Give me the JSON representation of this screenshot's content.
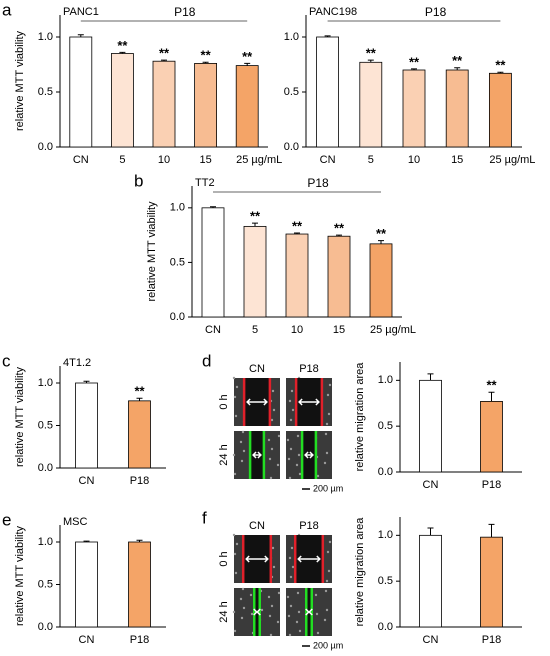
{
  "chart_data": [
    {
      "type": "bar",
      "panel": "a",
      "title": "PANC1",
      "ylabel": "relative MTT viability",
      "group_label": "P18",
      "categories": [
        "CN",
        "5",
        "10",
        "15",
        "25 µg/mL"
      ],
      "values": [
        1.0,
        0.85,
        0.78,
        0.76,
        0.74
      ],
      "errors": [
        0.02,
        0.01,
        0.01,
        0.01,
        0.02
      ],
      "markers": [
        null,
        "**",
        "**",
        "**",
        "**"
      ],
      "colors": [
        "#ffffff",
        "#fde4d4",
        "#fad0b3",
        "#f7bc92",
        "#f4a467"
      ],
      "ylim": [
        0,
        1.2
      ],
      "yticks": [
        {
          "value": 0,
          "label": "0.0"
        },
        {
          "value": 0.5,
          "label": "0.5"
        },
        {
          "value": 1,
          "label": "1.0"
        }
      ]
    },
    {
      "type": "bar",
      "title": "PANC198",
      "group_label": "P18",
      "categories": [
        "CN",
        "5",
        "10",
        "15",
        "25 µg/mL"
      ],
      "values": [
        1.0,
        0.77,
        0.7,
        0.7,
        0.67
      ],
      "errors": [
        0.01,
        0.02,
        0.01,
        0.02,
        0.01
      ],
      "markers": [
        null,
        "**",
        "**",
        "**",
        "**"
      ],
      "colors": [
        "#ffffff",
        "#fde4d4",
        "#fad0b3",
        "#f7bc92",
        "#f4a467"
      ],
      "ylim": [
        0,
        1.2
      ],
      "yticks": [
        {
          "value": 0,
          "label": "0.0"
        },
        {
          "value": 0.5,
          "label": "0.5"
        },
        {
          "value": 1,
          "label": "1.0"
        }
      ]
    },
    {
      "type": "bar",
      "panel": "b",
      "title": "TT2",
      "ylabel": "relative MTT viability",
      "group_label": "P18",
      "categories": [
        "CN",
        "5",
        "10",
        "15",
        "25 µg/mL"
      ],
      "values": [
        1.0,
        0.83,
        0.76,
        0.74,
        0.67
      ],
      "errors": [
        0.01,
        0.03,
        0.01,
        0.01,
        0.03
      ],
      "markers": [
        null,
        "**",
        "**",
        "**",
        "**"
      ],
      "colors": [
        "#ffffff",
        "#fde4d4",
        "#fad0b3",
        "#f7bc92",
        "#f4a467"
      ],
      "ylim": [
        0,
        1.2
      ],
      "yticks": [
        {
          "value": 0,
          "label": "0.0"
        },
        {
          "value": 0.5,
          "label": "0.5"
        },
        {
          "value": 1,
          "label": "1.0"
        }
      ]
    },
    {
      "type": "bar",
      "panel": "c",
      "title": "4T1.2",
      "ylabel": "relative MTT viability",
      "categories": [
        "CN",
        "P18"
      ],
      "values": [
        1.0,
        0.79
      ],
      "errors": [
        0.02,
        0.03
      ],
      "markers": [
        null,
        "**"
      ],
      "colors": [
        "#ffffff",
        "#f4a467"
      ],
      "ylim": [
        0,
        1.2
      ],
      "yticks": [
        {
          "value": 0,
          "label": "0.0"
        },
        {
          "value": 0.5,
          "label": "0.5"
        },
        {
          "value": 1,
          "label": "1.0"
        }
      ]
    },
    {
      "type": "bar",
      "ylabel": "relative migration area",
      "categories": [
        "CN",
        "P18"
      ],
      "values": [
        1.0,
        0.77
      ],
      "errors": [
        0.07,
        0.1
      ],
      "markers": [
        null,
        "**"
      ],
      "colors": [
        "#ffffff",
        "#f4a467"
      ],
      "ylim": [
        0,
        1.2
      ],
      "yticks": [
        {
          "value": 0,
          "label": "0.0"
        },
        {
          "value": 0.5,
          "label": "0.5"
        },
        {
          "value": 1,
          "label": "1.0"
        }
      ]
    },
    {
      "type": "bar",
      "panel": "e",
      "title": "MSC",
      "ylabel": "relative MTT viability",
      "categories": [
        "CN",
        "P18"
      ],
      "values": [
        1.0,
        1.0
      ],
      "errors": [
        0.01,
        0.02
      ],
      "colors": [
        "#ffffff",
        "#f4a467"
      ],
      "ylim": [
        0,
        1.2
      ],
      "yticks": [
        {
          "value": 0,
          "label": "0.0"
        },
        {
          "value": 0.5,
          "label": "0.5"
        },
        {
          "value": 1,
          "label": "1.0"
        }
      ]
    },
    {
      "type": "bar",
      "ylabel": "relative migration area",
      "categories": [
        "CN",
        "P18"
      ],
      "values": [
        1.0,
        0.98
      ],
      "errors": [
        0.08,
        0.14
      ],
      "colors": [
        "#ffffff",
        "#f4a467"
      ],
      "ylim": [
        0,
        1.2
      ],
      "yticks": [
        {
          "value": 0,
          "label": "0.0"
        },
        {
          "value": 0.5,
          "label": "0.5"
        },
        {
          "value": 1,
          "label": "1.0"
        }
      ]
    }
  ],
  "micrographs": [
    {
      "panel": "d",
      "columns": [
        "CN",
        "P18"
      ],
      "rows": [
        "0 h",
        "24 h"
      ],
      "scale": "200 µm"
    },
    {
      "panel": "f",
      "columns": [
        "CN",
        "P18"
      ],
      "rows": [
        "0 h",
        "24 h"
      ],
      "scale": "200 µm"
    }
  ]
}
